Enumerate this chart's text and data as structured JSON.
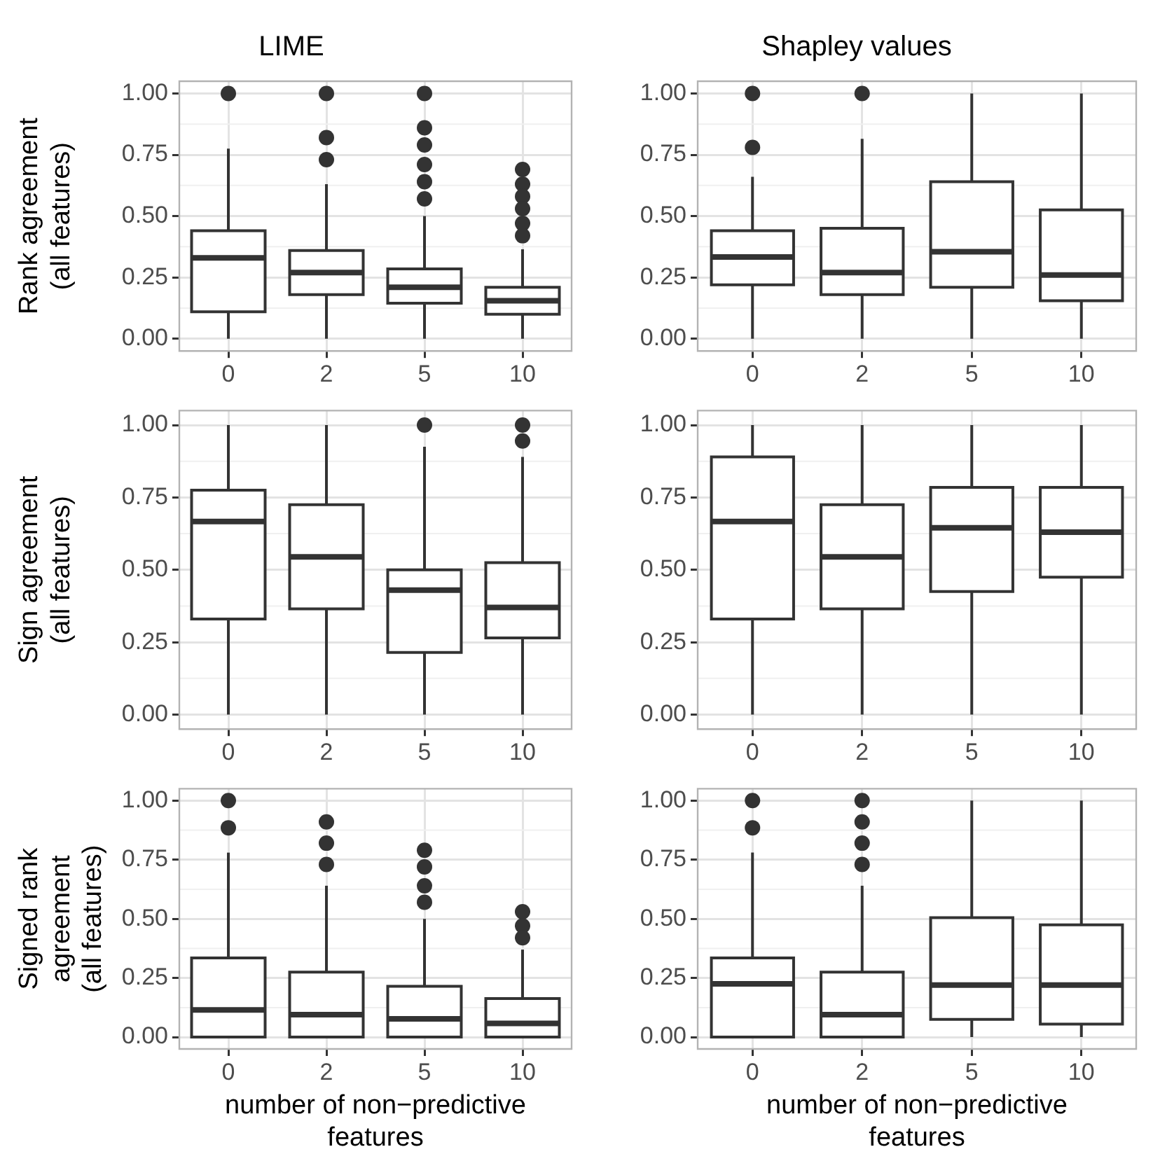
{
  "chart_data": [
    {
      "type": "box",
      "title": "LIME",
      "ylabel": "Rank agreement\n(all features)",
      "categories": [
        "0",
        "2",
        "5",
        "10"
      ],
      "ylim": [
        -0.05,
        1.05
      ],
      "yticks": [
        {
          "value": 0,
          "label": "0.00"
        },
        {
          "value": 0.25,
          "label": "0.25"
        },
        {
          "value": 0.5,
          "label": "0.50"
        },
        {
          "value": 0.75,
          "label": "0.75"
        },
        {
          "value": 1,
          "label": "1.00"
        }
      ],
      "grid": true,
      "boxes": [
        {
          "low": 0,
          "q1": 0.11,
          "median": 0.33,
          "q3": 0.44,
          "high": 0.775,
          "outliers": [
            1.0
          ]
        },
        {
          "low": 0,
          "q1": 0.18,
          "median": 0.27,
          "q3": 0.36,
          "high": 0.63,
          "outliers": [
            1.0,
            0.82,
            0.73
          ]
        },
        {
          "low": 0,
          "q1": 0.145,
          "median": 0.21,
          "q3": 0.285,
          "high": 0.5,
          "outliers": [
            1.0,
            0.86,
            0.79,
            0.71,
            0.64,
            0.57
          ]
        },
        {
          "low": 0,
          "q1": 0.1,
          "median": 0.155,
          "q3": 0.21,
          "high": 0.365,
          "outliers": [
            0.69,
            0.63,
            0.58,
            0.53,
            0.47,
            0.42
          ]
        }
      ]
    },
    {
      "type": "box",
      "title": "Shapley values",
      "categories": [
        "0",
        "2",
        "5",
        "10"
      ],
      "ylim": [
        -0.05,
        1.05
      ],
      "yticks": [
        {
          "value": 0,
          "label": "0.00"
        },
        {
          "value": 0.25,
          "label": "0.25"
        },
        {
          "value": 0.5,
          "label": "0.50"
        },
        {
          "value": 0.75,
          "label": "0.75"
        },
        {
          "value": 1,
          "label": "1.00"
        }
      ],
      "grid": true,
      "boxes": [
        {
          "low": 0,
          "q1": 0.22,
          "median": 0.333,
          "q3": 0.44,
          "high": 0.66,
          "outliers": [
            1.0,
            0.78
          ]
        },
        {
          "low": 0,
          "q1": 0.18,
          "median": 0.27,
          "q3": 0.45,
          "high": 0.815,
          "outliers": [
            1.0
          ]
        },
        {
          "low": 0,
          "q1": 0.21,
          "median": 0.355,
          "q3": 0.64,
          "high": 1.0
        },
        {
          "low": 0,
          "q1": 0.155,
          "median": 0.26,
          "q3": 0.525,
          "high": 1.0
        }
      ]
    },
    {
      "type": "box",
      "ylabel": "Sign agreement\n(all features)",
      "categories": [
        "0",
        "2",
        "5",
        "10"
      ],
      "ylim": [
        -0.05,
        1.05
      ],
      "yticks": [
        {
          "value": 0,
          "label": "0.00"
        },
        {
          "value": 0.25,
          "label": "0.25"
        },
        {
          "value": 0.5,
          "label": "0.50"
        },
        {
          "value": 0.75,
          "label": "0.75"
        },
        {
          "value": 1,
          "label": "1.00"
        }
      ],
      "grid": true,
      "boxes": [
        {
          "low": 0,
          "q1": 0.33,
          "median": 0.667,
          "q3": 0.775,
          "high": 1.0
        },
        {
          "low": 0,
          "q1": 0.365,
          "median": 0.545,
          "q3": 0.725,
          "high": 1.0
        },
        {
          "low": 0,
          "q1": 0.215,
          "median": 0.43,
          "q3": 0.5,
          "high": 0.925,
          "outliers": [
            1.0
          ]
        },
        {
          "low": 0,
          "q1": 0.265,
          "median": 0.37,
          "q3": 0.525,
          "high": 0.89,
          "outliers": [
            1.0,
            0.945
          ]
        }
      ]
    },
    {
      "type": "box",
      "categories": [
        "0",
        "2",
        "5",
        "10"
      ],
      "ylim": [
        -0.05,
        1.05
      ],
      "yticks": [
        {
          "value": 0,
          "label": "0.00"
        },
        {
          "value": 0.25,
          "label": "0.25"
        },
        {
          "value": 0.5,
          "label": "0.50"
        },
        {
          "value": 0.75,
          "label": "0.75"
        },
        {
          "value": 1,
          "label": "1.00"
        }
      ],
      "grid": true,
      "boxes": [
        {
          "low": 0,
          "q1": 0.33,
          "median": 0.667,
          "q3": 0.89,
          "high": 1.0
        },
        {
          "low": 0,
          "q1": 0.365,
          "median": 0.545,
          "q3": 0.725,
          "high": 1.0
        },
        {
          "low": 0,
          "q1": 0.425,
          "median": 0.645,
          "q3": 0.785,
          "high": 1.0
        },
        {
          "low": 0,
          "q1": 0.475,
          "median": 0.63,
          "q3": 0.785,
          "high": 1.0
        }
      ]
    },
    {
      "type": "box",
      "ylabel": "Signed rank\nagreement\n(all features)",
      "xlabel": "number of non−predictive\nfeatures",
      "categories": [
        "0",
        "2",
        "5",
        "10"
      ],
      "ylim": [
        -0.05,
        1.05
      ],
      "yticks": [
        {
          "value": 0,
          "label": "0.00"
        },
        {
          "value": 0.25,
          "label": "0.25"
        },
        {
          "value": 0.5,
          "label": "0.50"
        },
        {
          "value": 0.75,
          "label": "0.75"
        },
        {
          "value": 1,
          "label": "1.00"
        }
      ],
      "grid": true,
      "boxes": [
        {
          "low": 0,
          "q1": 0,
          "median": 0.115,
          "q3": 0.335,
          "high": 0.78,
          "outliers": [
            1.0,
            0.885
          ]
        },
        {
          "low": 0,
          "q1": 0,
          "median": 0.095,
          "q3": 0.275,
          "high": 0.64,
          "outliers": [
            0.91,
            0.82,
            0.73
          ]
        },
        {
          "low": 0,
          "q1": 0,
          "median": 0.077,
          "q3": 0.215,
          "high": 0.5,
          "outliers": [
            0.79,
            0.72,
            0.64,
            0.57
          ]
        },
        {
          "low": 0,
          "q1": 0,
          "median": 0.058,
          "q3": 0.163,
          "high": 0.37,
          "outliers": [
            0.53,
            0.47,
            0.42
          ]
        }
      ]
    },
    {
      "type": "box",
      "xlabel": "number of non−predictive\nfeatures",
      "categories": [
        "0",
        "2",
        "5",
        "10"
      ],
      "ylim": [
        -0.05,
        1.05
      ],
      "yticks": [
        {
          "value": 0,
          "label": "0.00"
        },
        {
          "value": 0.25,
          "label": "0.25"
        },
        {
          "value": 0.5,
          "label": "0.50"
        },
        {
          "value": 0.75,
          "label": "0.75"
        },
        {
          "value": 1,
          "label": "1.00"
        }
      ],
      "grid": true,
      "boxes": [
        {
          "low": 0,
          "q1": 0,
          "median": 0.225,
          "q3": 0.335,
          "high": 0.78,
          "outliers": [
            1.0,
            0.885
          ]
        },
        {
          "low": 0,
          "q1": 0,
          "median": 0.095,
          "q3": 0.275,
          "high": 0.64,
          "outliers": [
            1.0,
            0.91,
            0.82,
            0.73
          ]
        },
        {
          "low": 0,
          "q1": 0.075,
          "median": 0.22,
          "q3": 0.505,
          "high": 1.0
        },
        {
          "low": 0,
          "q1": 0.055,
          "median": 0.22,
          "q3": 0.475,
          "high": 1.0
        }
      ]
    }
  ]
}
